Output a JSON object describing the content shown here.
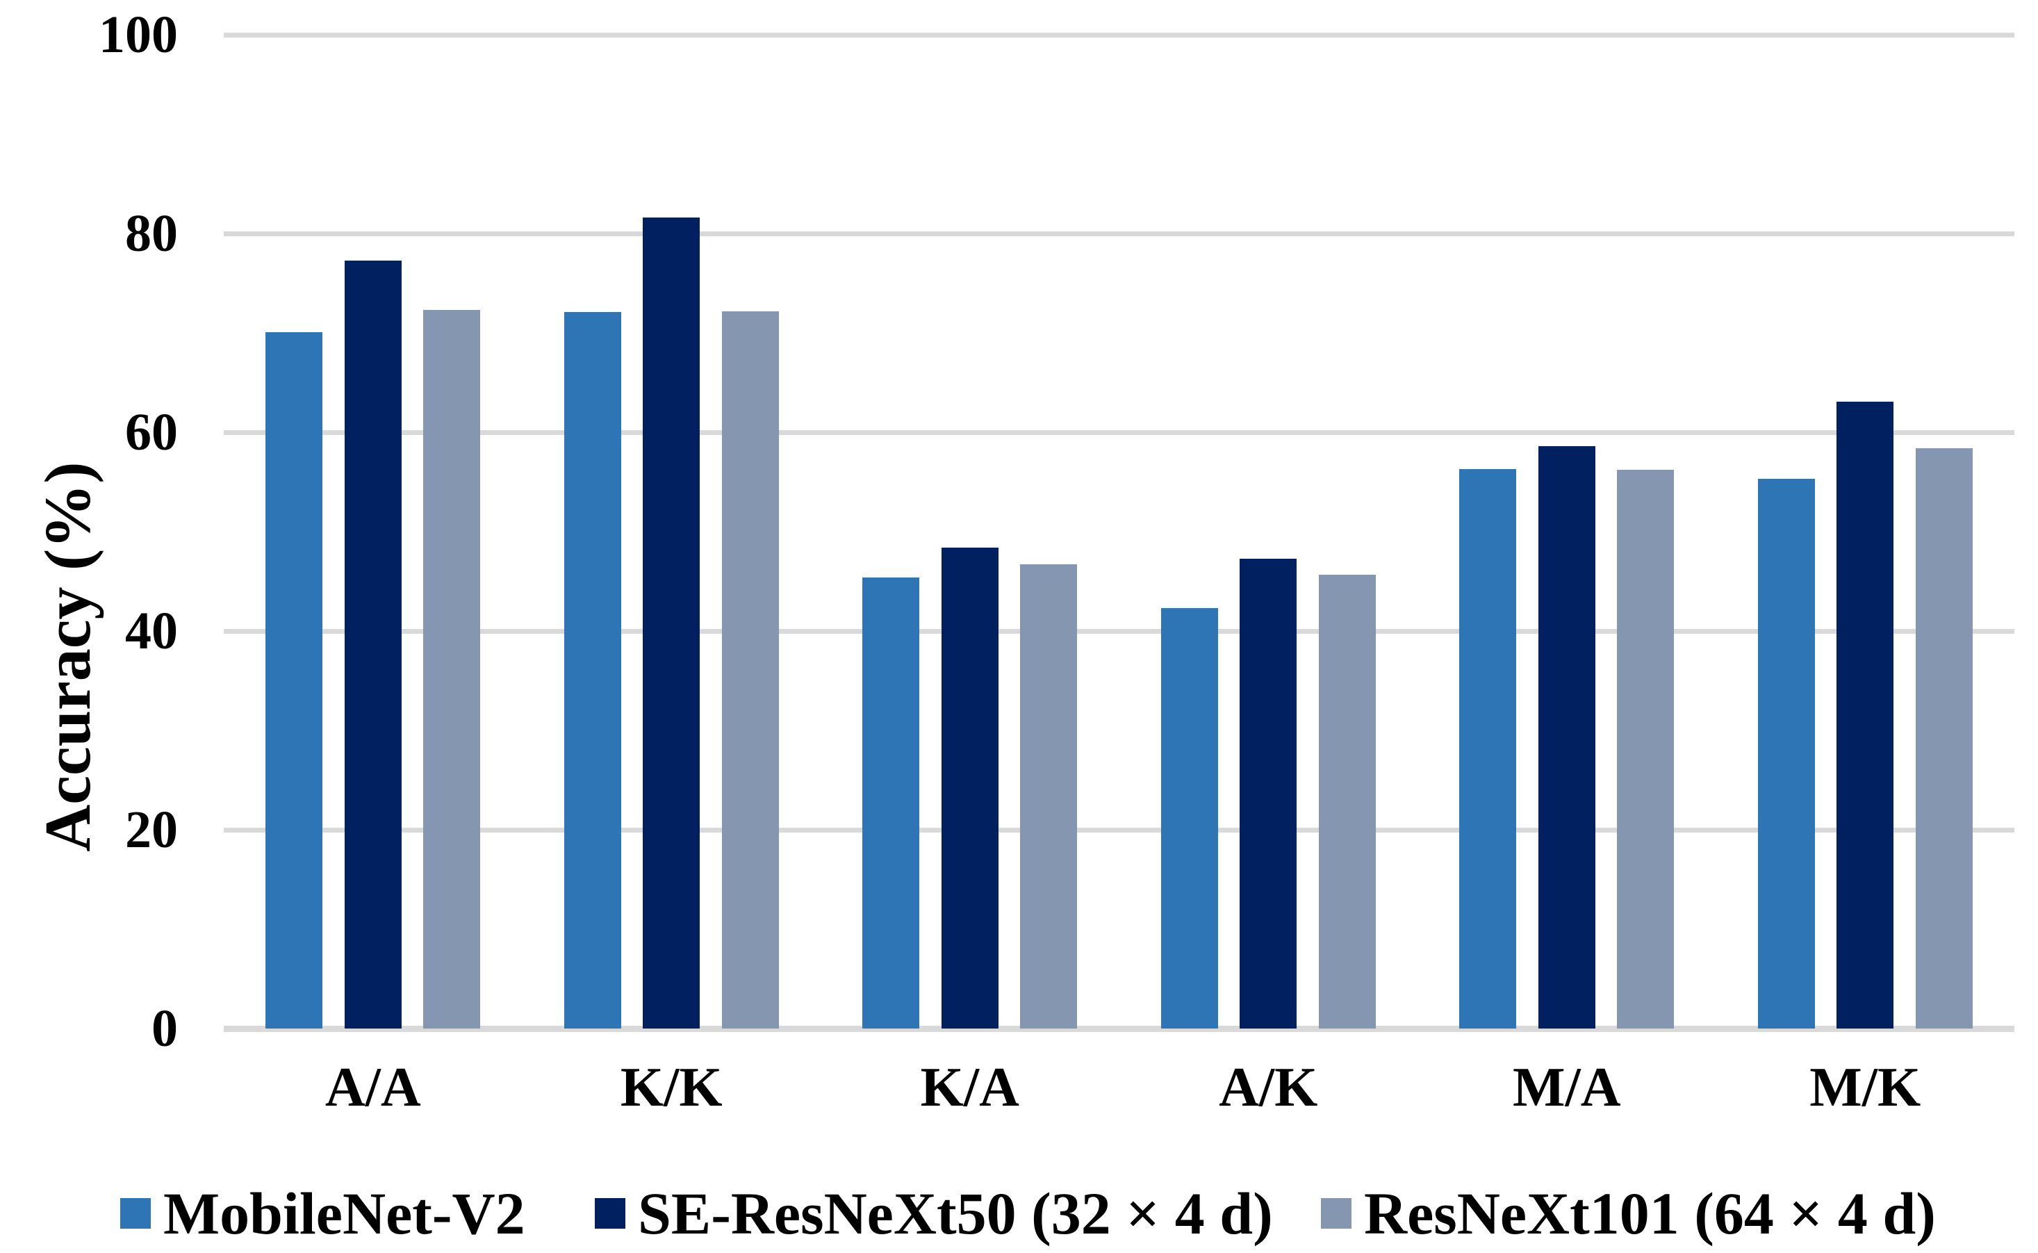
{
  "chart_data": {
    "type": "bar",
    "title": "",
    "xlabel": "",
    "ylabel": "Accuracy (%)",
    "categories": [
      "A/A",
      "K/K",
      "K/A",
      "A/K",
      "M/A",
      "M/K"
    ],
    "series": [
      {
        "name": "MobileNet-V2",
        "color": "#2E75B6",
        "values": [
          70.1,
          72.1,
          45.4,
          42.3,
          56.3,
          55.3
        ]
      },
      {
        "name": "SE-ResNeXt50 (32 × 4 d)",
        "color": "#002060",
        "values": [
          77.3,
          81.6,
          48.4,
          47.3,
          58.6,
          63.1
        ]
      },
      {
        "name": "ResNeXt101 (64 × 4 d)",
        "color": "#8496B0",
        "values": [
          72.3,
          72.2,
          46.7,
          45.7,
          56.2,
          58.4
        ]
      }
    ],
    "ylim": [
      0,
      100
    ],
    "yticks": [
      0,
      20,
      40,
      60,
      80,
      100
    ],
    "grid": "horizontal",
    "gridline_color": "#D9D9D9",
    "legend_position": "bottom",
    "text_color": "#000000",
    "background_color": "#FFFFFF"
  }
}
